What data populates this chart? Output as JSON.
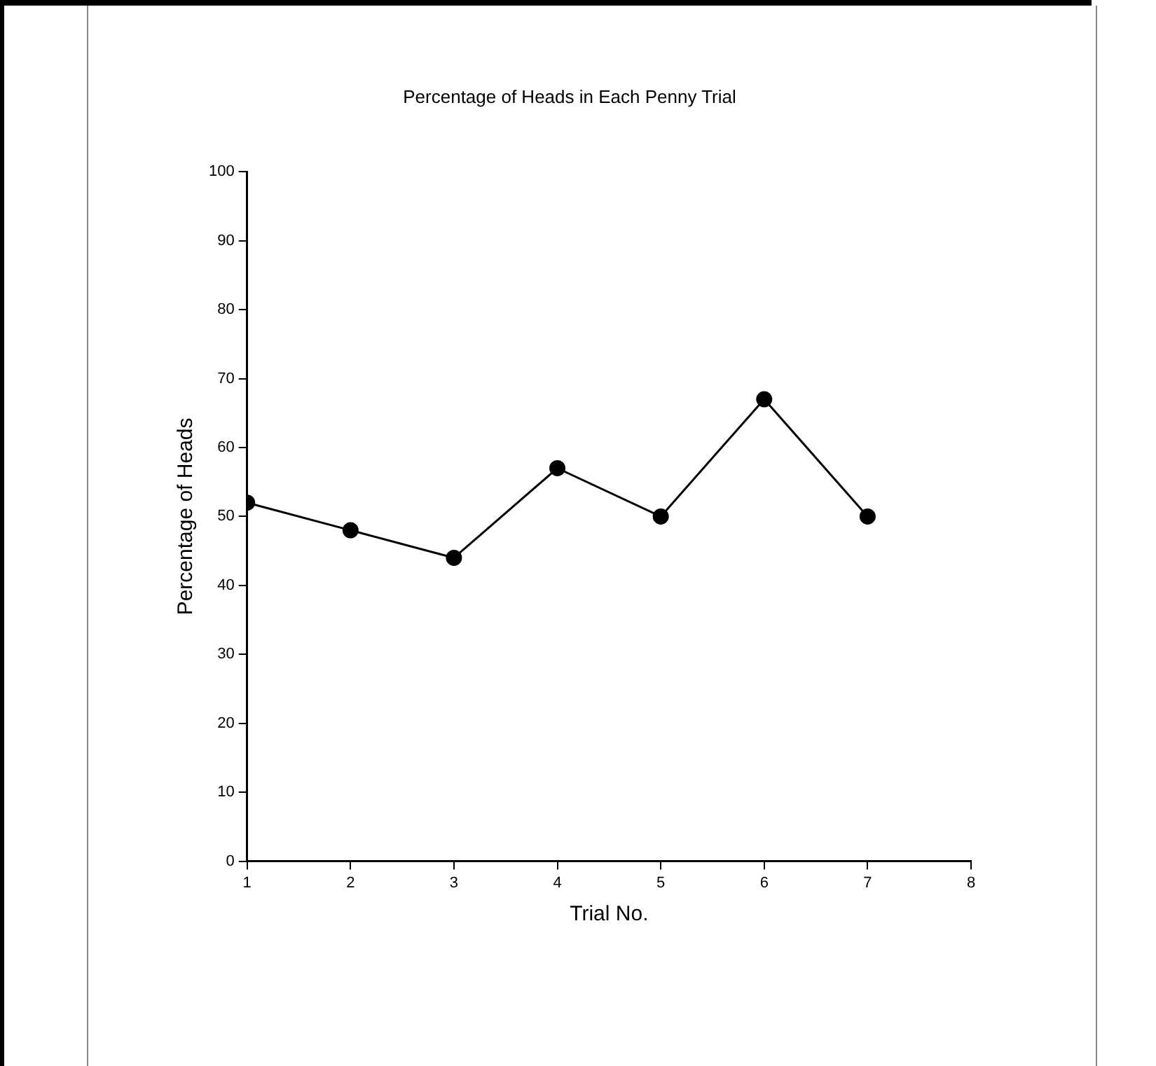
{
  "chart_data": {
    "type": "line",
    "title": "Percentage of Heads in Each Penny Trial",
    "xlabel": "Trial No.",
    "ylabel": "Percentage of Heads",
    "x": [
      1,
      2,
      3,
      4,
      5,
      6,
      7
    ],
    "series": [
      {
        "color": "#000000",
        "values": [
          52,
          48,
          44,
          57,
          50,
          67,
          50
        ]
      }
    ],
    "xlim": [
      1,
      8
    ],
    "xticks": [
      1,
      2,
      3,
      4,
      5,
      6,
      7,
      8
    ],
    "ylim": [
      0,
      100
    ],
    "yticks": [
      0,
      10,
      20,
      30,
      40,
      50,
      60,
      70,
      80,
      90,
      100
    ],
    "grid": false,
    "legend": false,
    "marker": "circle",
    "line_style": "solid"
  }
}
